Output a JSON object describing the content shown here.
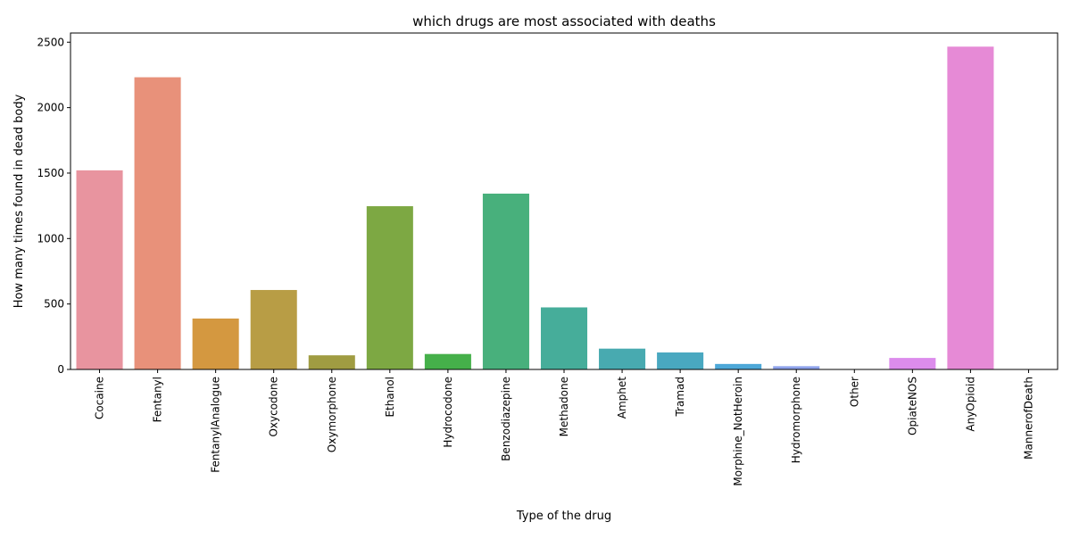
{
  "chart_data": {
    "type": "bar",
    "title": "which drugs are most associated with deaths",
    "xlabel": "Type of the drug",
    "ylabel": "How many times found in dead body",
    "categories": [
      "Cocaine",
      "Fentanyl",
      "FentanylAnalogue",
      "Oxycodone",
      "Oxymorphone",
      "Ethanol",
      "Hydrocodone",
      "Benzodiazepine",
      "Methadone",
      "Amphet",
      "Tramad",
      "Morphine_NotHeroin",
      "Hydromorphone",
      "Other",
      "OpiateNOS",
      "AnyOpioid",
      "MannerofDeath"
    ],
    "values": [
      1521,
      2232,
      389,
      607,
      108,
      1247,
      118,
      1343,
      474,
      159,
      130,
      42,
      25,
      0,
      88,
      2466,
      0
    ],
    "colors": [
      "#e8949f",
      "#e8917a",
      "#d49840",
      "#b89d45",
      "#a09c42",
      "#7da843",
      "#45b04a",
      "#48b07c",
      "#46ad9a",
      "#48aab0",
      "#49a8c0",
      "#4da8d8",
      "#8fa3ec",
      "#b59af0",
      "#dc8cec",
      "#e68ad6",
      "#e58ab8"
    ],
    "ylim": [
      0,
      2570
    ],
    "yticks": [
      0,
      500,
      1000,
      1500,
      2000,
      2500
    ],
    "grid": false,
    "legend": "none"
  }
}
